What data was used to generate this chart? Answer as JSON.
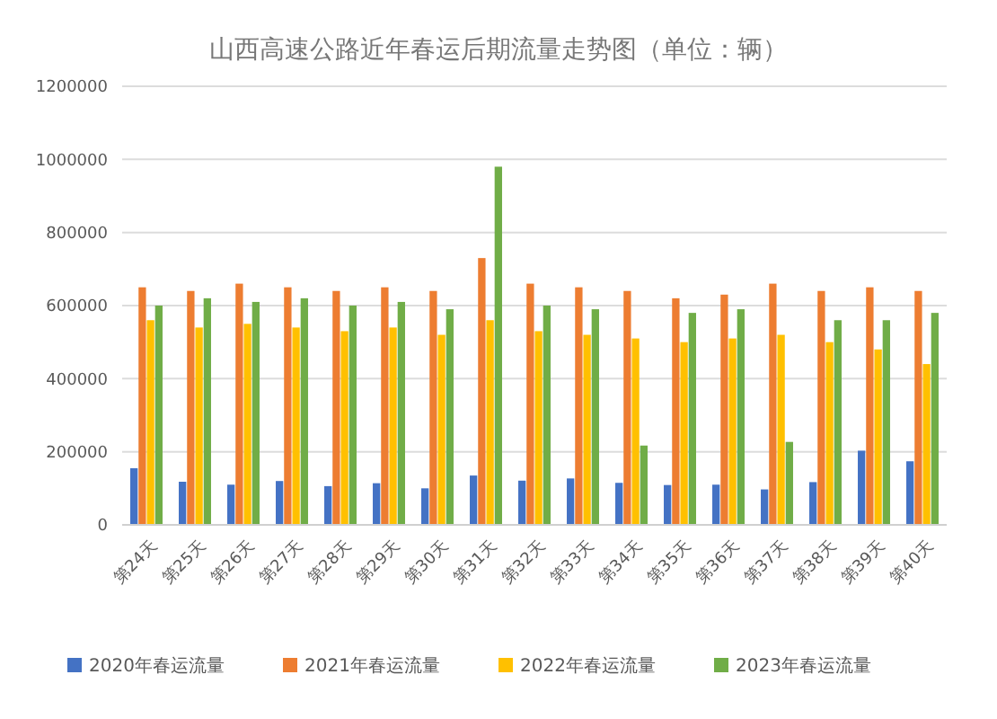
{
  "chart_data": {
    "type": "bar",
    "title": "山西高速公路近年春运后期流量走势图（单位：辆）",
    "categories": [
      "第24天",
      "第25天",
      "第26天",
      "第27天",
      "第28天",
      "第29天",
      "第30天",
      "第31天",
      "第32天",
      "第33天",
      "第34天",
      "第35天",
      "第36天",
      "第37天",
      "第38天",
      "第39天",
      "第40天"
    ],
    "series": [
      {
        "name": "2020年春运流量",
        "color": "#4472c4",
        "values": [
          155000,
          118000,
          110000,
          120000,
          106000,
          114000,
          100000,
          135000,
          121000,
          127000,
          115000,
          109000,
          110000,
          97000,
          117000,
          203000,
          174000
        ]
      },
      {
        "name": "2021年春运流量",
        "color": "#ed7d31",
        "values": [
          650000,
          640000,
          660000,
          650000,
          640000,
          650000,
          640000,
          730000,
          660000,
          650000,
          640000,
          620000,
          630000,
          660000,
          640000,
          650000,
          640000
        ]
      },
      {
        "name": "2022年春运流量",
        "color": "#ffc000",
        "values": [
          560000,
          540000,
          550000,
          540000,
          530000,
          540000,
          520000,
          560000,
          530000,
          520000,
          510000,
          500000,
          510000,
          520000,
          500000,
          480000,
          440000
        ]
      },
      {
        "name": "2023年春运流量",
        "color": "#70ad47",
        "values": [
          600000,
          620000,
          610000,
          620000,
          600000,
          610000,
          590000,
          980000,
          600000,
          590000,
          217000,
          580000,
          590000,
          227000,
          560000,
          560000,
          580000
        ]
      }
    ],
    "ylim": [
      0,
      1200000
    ],
    "yticks": [
      0,
      200000,
      400000,
      600000,
      800000,
      1000000,
      1200000
    ],
    "grid": "y",
    "legend": "bottom"
  }
}
